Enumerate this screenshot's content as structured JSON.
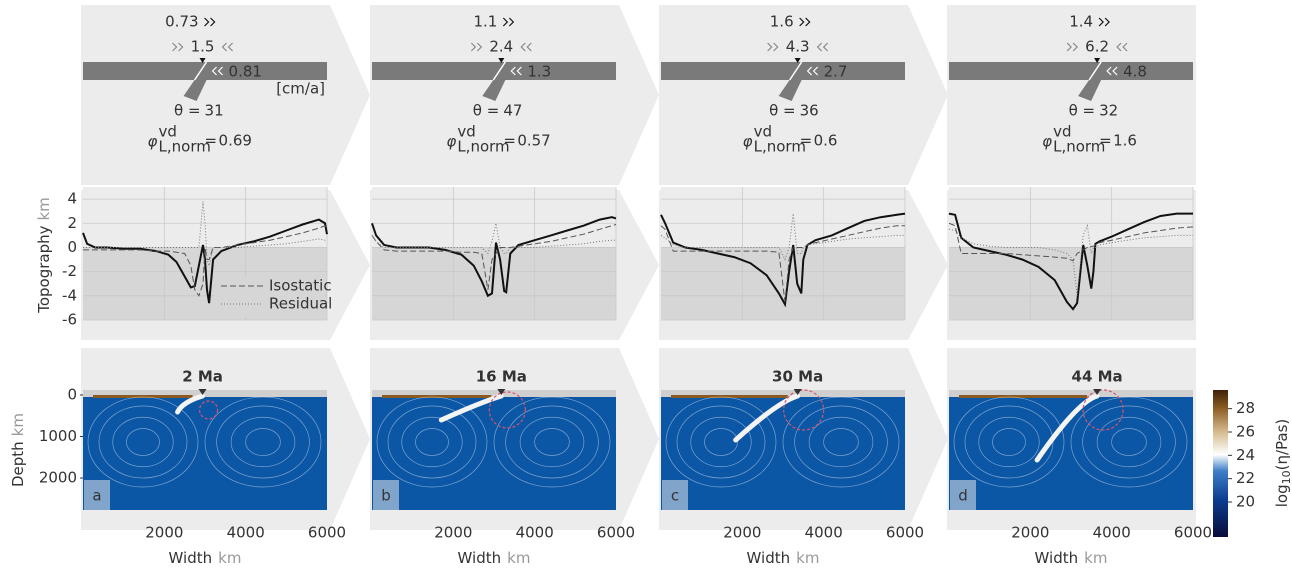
{
  "labels": {
    "topo": "Topography",
    "depth": "Depth",
    "width": "Width",
    "unit_km": "km",
    "dip": "θ =",
    "phi": "φ",
    "phi_sup": "vd",
    "phi_sub": "L,norm",
    "equals": "=",
    "velocity_unit": "[cm/a]"
  },
  "colorbar": {
    "label_base": "log",
    "label_sub": "10",
    "label_rest": "(η/Pas)",
    "clim": [
      17,
      29.6
    ],
    "ticks": [
      20,
      22,
      24,
      26,
      28
    ]
  },
  "chart_data": [
    {
      "type": "line",
      "time": "2 Ma",
      "letter": "a",
      "trench_velocity": 0.73,
      "convergence": 1.5,
      "slab_velocity": 0.81,
      "dip": 31,
      "phi": 0.69,
      "x": [
        0,
        100,
        300,
        600,
        1000,
        1400,
        1800,
        2100,
        2300,
        2500,
        2650,
        2750,
        2850,
        2950,
        3000,
        3050,
        3100,
        3200,
        3400,
        3800,
        4200,
        4600,
        5000,
        5400,
        5800,
        5950,
        6000
      ],
      "series": [
        {
          "color": "#111111",
          "values": [
            1.2,
            0.3,
            0,
            0,
            -0.1,
            -0.1,
            -0.3,
            -0.6,
            -1.2,
            -2.4,
            -3.3,
            -3.2,
            -1.5,
            0.2,
            -1,
            -3.5,
            -4.6,
            -1,
            -0.3,
            0.2,
            0.5,
            0.9,
            1.4,
            1.9,
            2.3,
            2,
            1.1
          ]
        },
        {
          "name": "Isostatic",
          "color": "#555555",
          "values": [
            -0.2,
            -0.2,
            -0.2,
            -0.2,
            -0.2,
            -0.2,
            -0.3,
            -0.3,
            -0.4,
            -0.5,
            -1.5,
            -3.5,
            -4,
            -3,
            0,
            -1,
            -1,
            0,
            0,
            0.2,
            0.4,
            0.6,
            0.9,
            1.2,
            1.6,
            1.8,
            1.5
          ]
        },
        {
          "name": "Residual",
          "color": "#777777",
          "values": [
            0,
            0,
            0,
            0,
            0,
            0,
            0,
            0,
            0,
            0,
            0,
            0,
            0,
            3.8,
            2,
            -1,
            -1.5,
            0,
            0,
            0,
            0.1,
            0.2,
            0.3,
            0.5,
            0.7,
            0.6,
            0.6
          ]
        }
      ],
      "xlim": [
        0,
        6000
      ],
      "xticks": [
        2000,
        4000,
        6000
      ],
      "ylim": [
        -6,
        5
      ],
      "yticks": [
        -6,
        -4,
        -2,
        0,
        2,
        4
      ],
      "show_y_labels": true,
      "legend": "lower right",
      "grid": true,
      "depth_lim": [
        -120,
        2770
      ],
      "depth_ticks": [
        0,
        1000,
        2000
      ]
    },
    {
      "type": "line",
      "time": "16 Ma",
      "letter": "b",
      "trench_velocity": 1.1,
      "convergence": 2.4,
      "slab_velocity": 1.3,
      "dip": 47,
      "phi": 0.57,
      "x": [
        0,
        100,
        300,
        600,
        1000,
        1400,
        1800,
        2200,
        2500,
        2700,
        2850,
        2950,
        3050,
        3150,
        3250,
        3300,
        3400,
        3600,
        4000,
        4400,
        4800,
        5200,
        5600,
        5900,
        6000
      ],
      "series": [
        {
          "color": "#111111",
          "values": [
            2,
            1,
            0.2,
            0,
            0,
            0,
            -0.2,
            -0.6,
            -1.5,
            -2.8,
            -4,
            -3.8,
            0.4,
            -1,
            -3.6,
            -3.7,
            -0.5,
            0.2,
            0.6,
            1,
            1.4,
            1.8,
            2.3,
            2.5,
            2.4
          ]
        },
        {
          "color": "#555555",
          "values": [
            1,
            0.5,
            -0.2,
            -0.3,
            -0.3,
            -0.3,
            -0.3,
            -0.4,
            -0.4,
            -0.5,
            -3.5,
            -1,
            -0.5,
            0,
            0,
            0,
            0,
            0.1,
            0.3,
            0.5,
            0.8,
            1.1,
            1.5,
            1.8,
            1.9
          ]
        },
        {
          "color": "#777777",
          "values": [
            1,
            0.5,
            0,
            0,
            0,
            0,
            0,
            0,
            0,
            0,
            -0.5,
            0.5,
            2,
            0,
            -0.5,
            -0.5,
            0,
            0,
            0,
            0.1,
            0.2,
            0.3,
            0.5,
            0.6,
            0.6
          ]
        }
      ],
      "xlim": [
        0,
        6000
      ],
      "xticks": [
        2000,
        4000,
        6000
      ],
      "ylim": [
        -6,
        5
      ],
      "yticks": [
        -6,
        -4,
        -2,
        0,
        2,
        4
      ],
      "grid": true,
      "depth_lim": [
        -120,
        2770
      ]
    },
    {
      "type": "line",
      "time": "30 Ma",
      "letter": "c",
      "trench_velocity": 1.6,
      "convergence": 4.3,
      "slab_velocity": 2.7,
      "dip": 36,
      "phi": 0.6,
      "x": [
        0,
        100,
        300,
        600,
        1000,
        1400,
        1800,
        2200,
        2600,
        2900,
        3050,
        3150,
        3250,
        3350,
        3450,
        3500,
        3600,
        3800,
        4200,
        4600,
        5000,
        5400,
        5800,
        6000
      ],
      "series": [
        {
          "color": "#111111",
          "values": [
            2.7,
            2,
            0.4,
            0,
            -0.2,
            -0.5,
            -0.8,
            -1.3,
            -2.3,
            -3.8,
            -4.7,
            -2,
            0.2,
            -3,
            -3.8,
            -1,
            0.2,
            0.6,
            1,
            1.6,
            2.2,
            2.5,
            2.7,
            2.8
          ]
        },
        {
          "color": "#555555",
          "values": [
            1.8,
            1.5,
            -0.3,
            -0.3,
            -0.3,
            -0.3,
            -0.3,
            -0.3,
            -0.3,
            -0.4,
            -4.5,
            -1,
            0,
            0,
            0,
            0,
            0.2,
            0.4,
            0.7,
            1,
            1.3,
            1.6,
            1.8,
            1.8
          ]
        },
        {
          "color": "#777777",
          "values": [
            1,
            0.8,
            0.2,
            0,
            0,
            0,
            0,
            0,
            0,
            0,
            -1,
            0,
            2.8,
            -0.5,
            -0.5,
            0,
            0.2,
            0.3,
            0.5,
            0.7,
            0.8,
            0.9,
            1,
            1
          ]
        }
      ],
      "xlim": [
        0,
        6000
      ],
      "xticks": [
        2000,
        4000,
        6000
      ],
      "ylim": [
        -6,
        5
      ],
      "yticks": [
        -6,
        -4,
        -2,
        0,
        2,
        4
      ],
      "grid": true,
      "depth_lim": [
        -120,
        2770
      ]
    },
    {
      "type": "line",
      "time": "44 Ma",
      "letter": "d",
      "trench_velocity": 1.4,
      "convergence": 6.2,
      "slab_velocity": 4.8,
      "dip": 32,
      "phi": 1.6,
      "x": [
        0,
        150,
        300,
        600,
        1000,
        1400,
        1800,
        2200,
        2600,
        2900,
        3050,
        3150,
        3300,
        3400,
        3500,
        3550,
        3600,
        3700,
        4000,
        4400,
        4800,
        5200,
        5600,
        6000
      ],
      "series": [
        {
          "color": "#111111",
          "values": [
            2.8,
            2.7,
            0.8,
            0,
            -0.3,
            -0.6,
            -1,
            -1.6,
            -2.7,
            -4.5,
            -5.1,
            -4.6,
            0.2,
            -1.5,
            -3.4,
            -2,
            0.3,
            0.5,
            0.9,
            1.5,
            2.1,
            2.6,
            2.8,
            2.8
          ]
        },
        {
          "color": "#555555",
          "values": [
            2,
            1.8,
            -0.5,
            -0.5,
            -0.5,
            -0.5,
            -0.6,
            -0.7,
            -0.8,
            -0.9,
            -1.1,
            -0.5,
            -0.2,
            0,
            0.1,
            0.1,
            0.2,
            0.4,
            0.6,
            0.9,
            1.2,
            1.4,
            1.6,
            1.7
          ]
        },
        {
          "color": "#777777",
          "values": [
            1.5,
            1.4,
            0.8,
            0.3,
            0.1,
            0,
            0,
            0,
            -0.2,
            -0.5,
            -1,
            -4,
            1,
            1.8,
            -0.5,
            0,
            0,
            0.2,
            0.4,
            0.6,
            0.8,
            0.9,
            1,
            1
          ]
        }
      ],
      "xlim": [
        0,
        6000
      ],
      "xticks": [
        2000,
        4000,
        6000
      ],
      "ylim": [
        -6,
        5
      ],
      "yticks": [
        -6,
        -4,
        -2,
        0,
        2,
        4
      ],
      "grid": true,
      "depth_lim": [
        -120,
        2770
      ]
    }
  ]
}
